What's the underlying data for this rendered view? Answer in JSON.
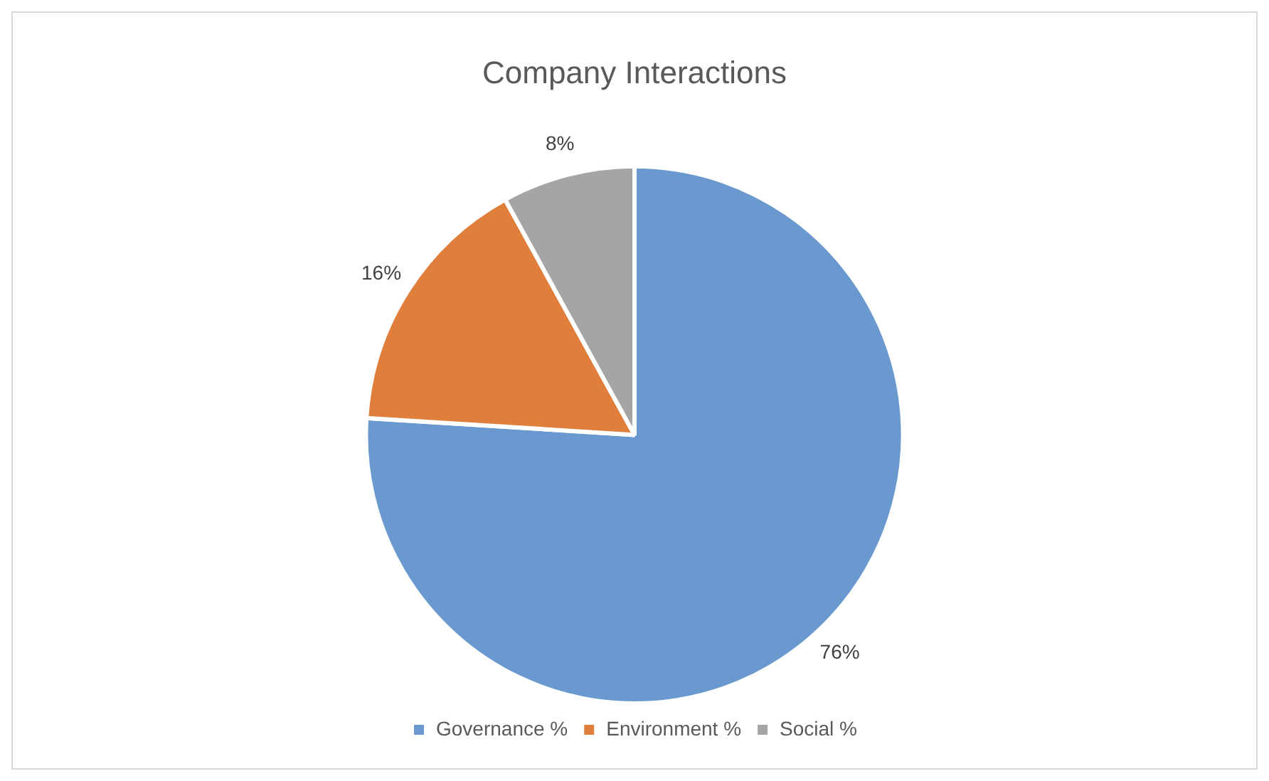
{
  "chart_data": {
    "type": "pie",
    "title": "Company Interactions",
    "categories": [
      "Governance %",
      "Environment %",
      "Social %"
    ],
    "values": [
      76,
      16,
      8
    ],
    "colors": [
      "#6a99cf",
      "#e07e3c",
      "#a5a5a5"
    ],
    "value_labels": [
      "76%",
      "16%",
      "8%"
    ],
    "legend": "bottom"
  }
}
